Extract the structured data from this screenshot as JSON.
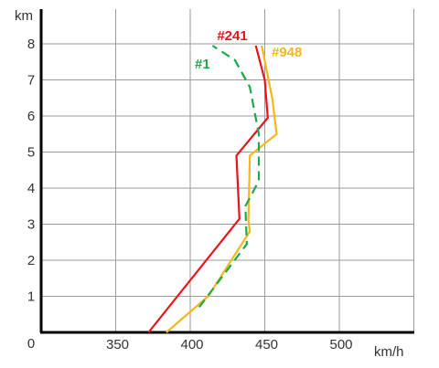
{
  "chart_data": {
    "type": "line",
    "xlabel": "km/h",
    "ylabel": "km",
    "xlim": [
      300,
      550
    ],
    "ylim": [
      0,
      8.5
    ],
    "x_ticks": [
      350,
      400,
      450,
      500
    ],
    "y_ticks": [
      0,
      1,
      2,
      3,
      4,
      5,
      6,
      7,
      8
    ],
    "grid": true,
    "series": [
      {
        "name": "#241",
        "color": "#e8141b",
        "dash": "solid",
        "points": [
          [
            372,
            0
          ],
          [
            433,
            3.15
          ],
          [
            431,
            4.9
          ],
          [
            452,
            5.95
          ],
          [
            450,
            7.0
          ],
          [
            444,
            7.95
          ]
        ]
      },
      {
        "name": "#948",
        "color": "#f5b81c",
        "dash": "solid",
        "points": [
          [
            384,
            0
          ],
          [
            412,
            1.0
          ],
          [
            440,
            2.8
          ],
          [
            439,
            3.1
          ],
          [
            440,
            4.9
          ],
          [
            458,
            5.5
          ],
          [
            455,
            6.5
          ],
          [
            448,
            7.95
          ]
        ]
      },
      {
        "name": "#1",
        "color": "#1ea84a",
        "dash": "dashed",
        "points": [
          [
            406,
            0.7
          ],
          [
            438,
            2.45
          ],
          [
            437,
            3.5
          ],
          [
            446,
            4.2
          ],
          [
            446,
            5.5
          ],
          [
            440,
            6.8
          ],
          [
            430,
            7.55
          ],
          [
            415,
            7.95
          ]
        ]
      }
    ]
  }
}
